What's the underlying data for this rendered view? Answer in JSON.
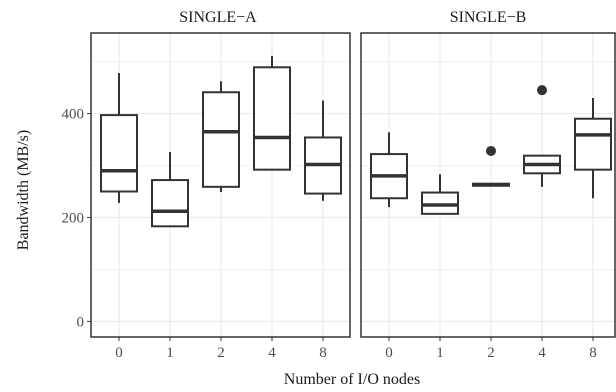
{
  "chart_data": {
    "type": "boxplot",
    "xlabel": "Number of I/O nodes",
    "ylabel": "Bandwidth (MB/s)",
    "ylim": [
      -30,
      555
    ],
    "yticks": [
      0,
      200,
      400
    ],
    "categories": [
      "0",
      "1",
      "2",
      "4",
      "8"
    ],
    "grid": true,
    "facets": [
      {
        "label": "SINGLE−A",
        "boxes": [
          {
            "category": "0",
            "whisker_low": 228,
            "q1": 250,
            "median": 290,
            "q3": 397,
            "whisker_high": 478,
            "outliers": []
          },
          {
            "category": "1",
            "whisker_low": 183,
            "q1": 183,
            "median": 212,
            "q3": 272,
            "whisker_high": 326,
            "outliers": []
          },
          {
            "category": "2",
            "whisker_low": 249,
            "q1": 259,
            "median": 365,
            "q3": 441,
            "whisker_high": 462,
            "outliers": []
          },
          {
            "category": "4",
            "whisker_low": 292,
            "q1": 292,
            "median": 354,
            "q3": 489,
            "whisker_high": 511,
            "outliers": []
          },
          {
            "category": "8",
            "whisker_low": 232,
            "q1": 246,
            "median": 302,
            "q3": 354,
            "whisker_high": 425,
            "outliers": []
          }
        ]
      },
      {
        "label": "SINGLE−B",
        "boxes": [
          {
            "category": "0",
            "whisker_low": 220,
            "q1": 237,
            "median": 280,
            "q3": 322,
            "whisker_high": 364,
            "outliers": []
          },
          {
            "category": "1",
            "whisker_low": 207,
            "q1": 207,
            "median": 224,
            "q3": 248,
            "whisker_high": 283,
            "outliers": []
          },
          {
            "category": "2",
            "whisker_low": 261,
            "q1": 261,
            "median": 263,
            "q3": 265,
            "whisker_high": 265,
            "outliers": [
              328
            ]
          },
          {
            "category": "4",
            "whisker_low": 259,
            "q1": 285,
            "median": 302,
            "q3": 319,
            "whisker_high": 319,
            "outliers": [
              445
            ]
          },
          {
            "category": "8",
            "whisker_low": 237,
            "q1": 292,
            "median": 359,
            "q3": 390,
            "whisker_high": 430,
            "outliers": []
          }
        ]
      }
    ]
  },
  "colors": {
    "panel_bg": "#ffffff",
    "grid": "#ebebeb",
    "border": "#333333",
    "box": "#333333",
    "tick": "#4d4d4d"
  }
}
